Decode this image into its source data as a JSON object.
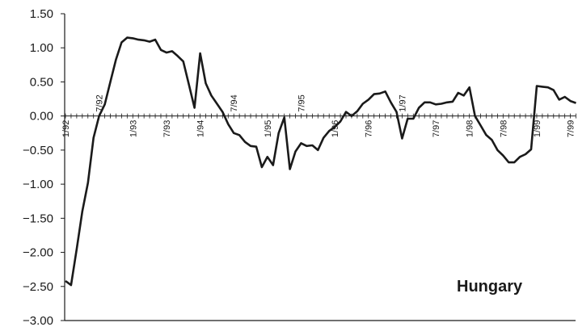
{
  "chart_data": {
    "type": "line",
    "title": "",
    "xlabel": "",
    "ylabel": "",
    "annotation": "Hungary",
    "ylim": [
      -3.0,
      1.5
    ],
    "y_ticks": [
      "1.50",
      "1.00",
      "0.50",
      "0.00",
      "−0.50",
      "−1.00",
      "−1.50",
      "−2.00",
      "−2.50",
      "−3.00"
    ],
    "x_ticks": [
      {
        "label": "1/92",
        "index": 0,
        "side": "below"
      },
      {
        "label": "7/92",
        "index": 6,
        "side": "above"
      },
      {
        "label": "1/93",
        "index": 12,
        "side": "below"
      },
      {
        "label": "7/93",
        "index": 18,
        "side": "below"
      },
      {
        "label": "1/94",
        "index": 24,
        "side": "below"
      },
      {
        "label": "7/94",
        "index": 30,
        "side": "above"
      },
      {
        "label": "1/95",
        "index": 36,
        "side": "below"
      },
      {
        "label": "7/95",
        "index": 42,
        "side": "above"
      },
      {
        "label": "1/96",
        "index": 48,
        "side": "below"
      },
      {
        "label": "7/96",
        "index": 54,
        "side": "below"
      },
      {
        "label": "1/97",
        "index": 60,
        "side": "above"
      },
      {
        "label": "7/97",
        "index": 66,
        "side": "below"
      },
      {
        "label": "1/98",
        "index": 72,
        "side": "below"
      },
      {
        "label": "7/98",
        "index": 78,
        "side": "below"
      },
      {
        "label": "1/99",
        "index": 84,
        "side": "below"
      },
      {
        "label": "7/99",
        "index": 90,
        "side": "below"
      }
    ],
    "series": [
      {
        "color": "#1a1a1a",
        "values": [
          -2.42,
          -2.48,
          -1.95,
          -1.4,
          -0.98,
          -0.32,
          0.0,
          0.17,
          0.5,
          0.83,
          1.08,
          1.15,
          1.14,
          1.12,
          1.11,
          1.09,
          1.12,
          0.97,
          0.93,
          0.95,
          0.88,
          0.8,
          0.46,
          0.12,
          0.92,
          0.48,
          0.3,
          0.18,
          0.06,
          -0.12,
          -0.25,
          -0.28,
          -0.38,
          -0.44,
          -0.45,
          -0.75,
          -0.6,
          -0.72,
          -0.25,
          -0.02,
          -0.78,
          -0.52,
          -0.4,
          -0.44,
          -0.43,
          -0.5,
          -0.32,
          -0.22,
          -0.16,
          -0.08,
          0.06,
          0.0,
          0.07,
          0.18,
          0.24,
          0.32,
          0.33,
          0.36,
          0.2,
          0.06,
          -0.33,
          -0.04,
          -0.04,
          0.12,
          0.2,
          0.2,
          0.17,
          0.18,
          0.2,
          0.21,
          0.34,
          0.3,
          0.42,
          0.0,
          -0.14,
          -0.28,
          -0.35,
          -0.5,
          -0.58,
          -0.68,
          -0.68,
          -0.6,
          -0.56,
          -0.49,
          0.44,
          0.43,
          0.42,
          0.38,
          0.24,
          0.28,
          0.22,
          0.19
        ]
      }
    ],
    "grid": false
  }
}
